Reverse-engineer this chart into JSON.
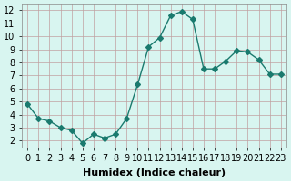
{
  "x": [
    0,
    1,
    2,
    3,
    4,
    5,
    6,
    7,
    8,
    9,
    10,
    11,
    12,
    13,
    14,
    15,
    16,
    17,
    18,
    19,
    20,
    21,
    22,
    23
  ],
  "y": [
    4.8,
    3.7,
    3.5,
    3.0,
    2.8,
    1.8,
    2.5,
    2.2,
    2.5,
    3.7,
    6.3,
    9.2,
    9.9,
    11.6,
    11.9,
    11.3,
    7.5,
    7.5,
    8.1,
    8.9,
    8.8,
    8.2,
    7.1,
    7.1
  ],
  "line_color": "#1a7a6e",
  "marker": "D",
  "marker_size": 3,
  "bg_color": "#d8f5f0",
  "grid_color": "#c0a0a0",
  "xlabel": "Humidex (Indice chaleur)",
  "xlim": [
    -0.5,
    23.5
  ],
  "ylim": [
    1.5,
    12.5
  ],
  "yticks": [
    2,
    3,
    4,
    5,
    6,
    7,
    8,
    9,
    10,
    11,
    12
  ],
  "xticks": [
    0,
    1,
    2,
    3,
    4,
    5,
    6,
    7,
    8,
    9,
    10,
    11,
    12,
    13,
    14,
    15,
    16,
    17,
    18,
    19,
    20,
    21,
    22,
    23
  ],
  "xtick_labels": [
    "0",
    "1",
    "2",
    "3",
    "4",
    "5",
    "6",
    "7",
    "8",
    "9",
    "10",
    "11",
    "12",
    "13",
    "14",
    "15",
    "16",
    "17",
    "18",
    "19",
    "20",
    "21",
    "22",
    "23"
  ],
  "xlabel_fontsize": 8,
  "tick_fontsize": 7
}
